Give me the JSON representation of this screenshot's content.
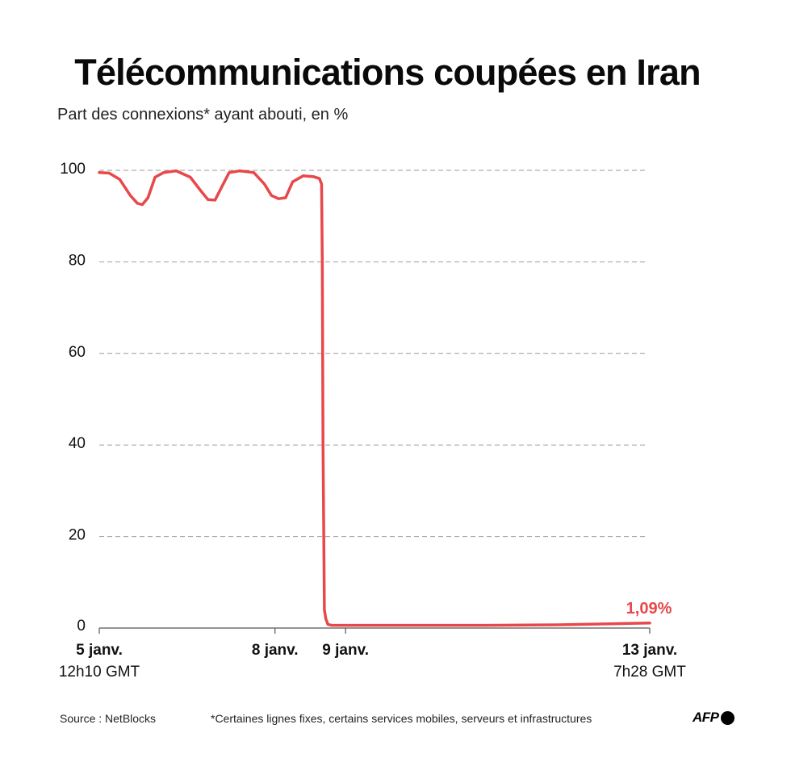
{
  "header": {
    "title": "Télécommunications coupées en Iran",
    "subtitle": "Part des connexions* ayant abouti, en %"
  },
  "footer": {
    "source": "Source : NetBlocks",
    "note": "*Certaines lignes fixes, certains services mobiles, serveurs et infrastructures",
    "logo": "AFP"
  },
  "colors": {
    "line": "#e8484a",
    "grid": "#9a9a9a",
    "axis": "#555555",
    "end_label": "#e8484a"
  },
  "chart_data": {
    "type": "line",
    "title": "Télécommunications coupées en Iran",
    "subtitle": "Part des connexions* ayant abouti, en %",
    "xlabel": "",
    "ylabel": "Part des connexions ayant abouti (%)",
    "ylim": [
      0,
      100
    ],
    "yticks": [
      0,
      20,
      40,
      60,
      80,
      100
    ],
    "grid": true,
    "x_ticks": [
      {
        "label": "5 janv.",
        "sublabel": "12h10 GMT",
        "day": 5.51
      },
      {
        "label": "8 janv.",
        "sublabel": "",
        "day": 8.0
      },
      {
        "label": "9 janv.",
        "sublabel": "",
        "day": 9.0
      },
      {
        "label": "13 janv.",
        "sublabel": "7h28 GMT",
        "day": 13.31
      }
    ],
    "end_annotation": "1,09%",
    "series": [
      {
        "name": "Connexions ayant abouti",
        "x_day": [
          5.51,
          5.65,
          5.8,
          5.95,
          6.05,
          6.12,
          6.2,
          6.3,
          6.42,
          6.6,
          6.8,
          6.95,
          7.05,
          7.15,
          7.25,
          7.35,
          7.5,
          7.7,
          7.85,
          7.95,
          8.05,
          8.15,
          8.25,
          8.4,
          8.55,
          8.63,
          8.66,
          8.67,
          8.68,
          8.7,
          8.72,
          8.75,
          8.8,
          9.0,
          10.0,
          11.0,
          12.0,
          13.31
        ],
        "values": [
          99.5,
          99.4,
          98.0,
          94.5,
          92.8,
          92.5,
          94.0,
          98.5,
          99.5,
          99.9,
          98.5,
          95.5,
          93.6,
          93.5,
          96.5,
          99.5,
          99.9,
          99.5,
          97.0,
          94.5,
          93.8,
          94.0,
          97.5,
          98.8,
          98.6,
          98.2,
          97.0,
          80.0,
          40.0,
          4.0,
          2.0,
          0.8,
          0.6,
          0.6,
          0.6,
          0.6,
          0.7,
          1.09
        ]
      }
    ]
  }
}
